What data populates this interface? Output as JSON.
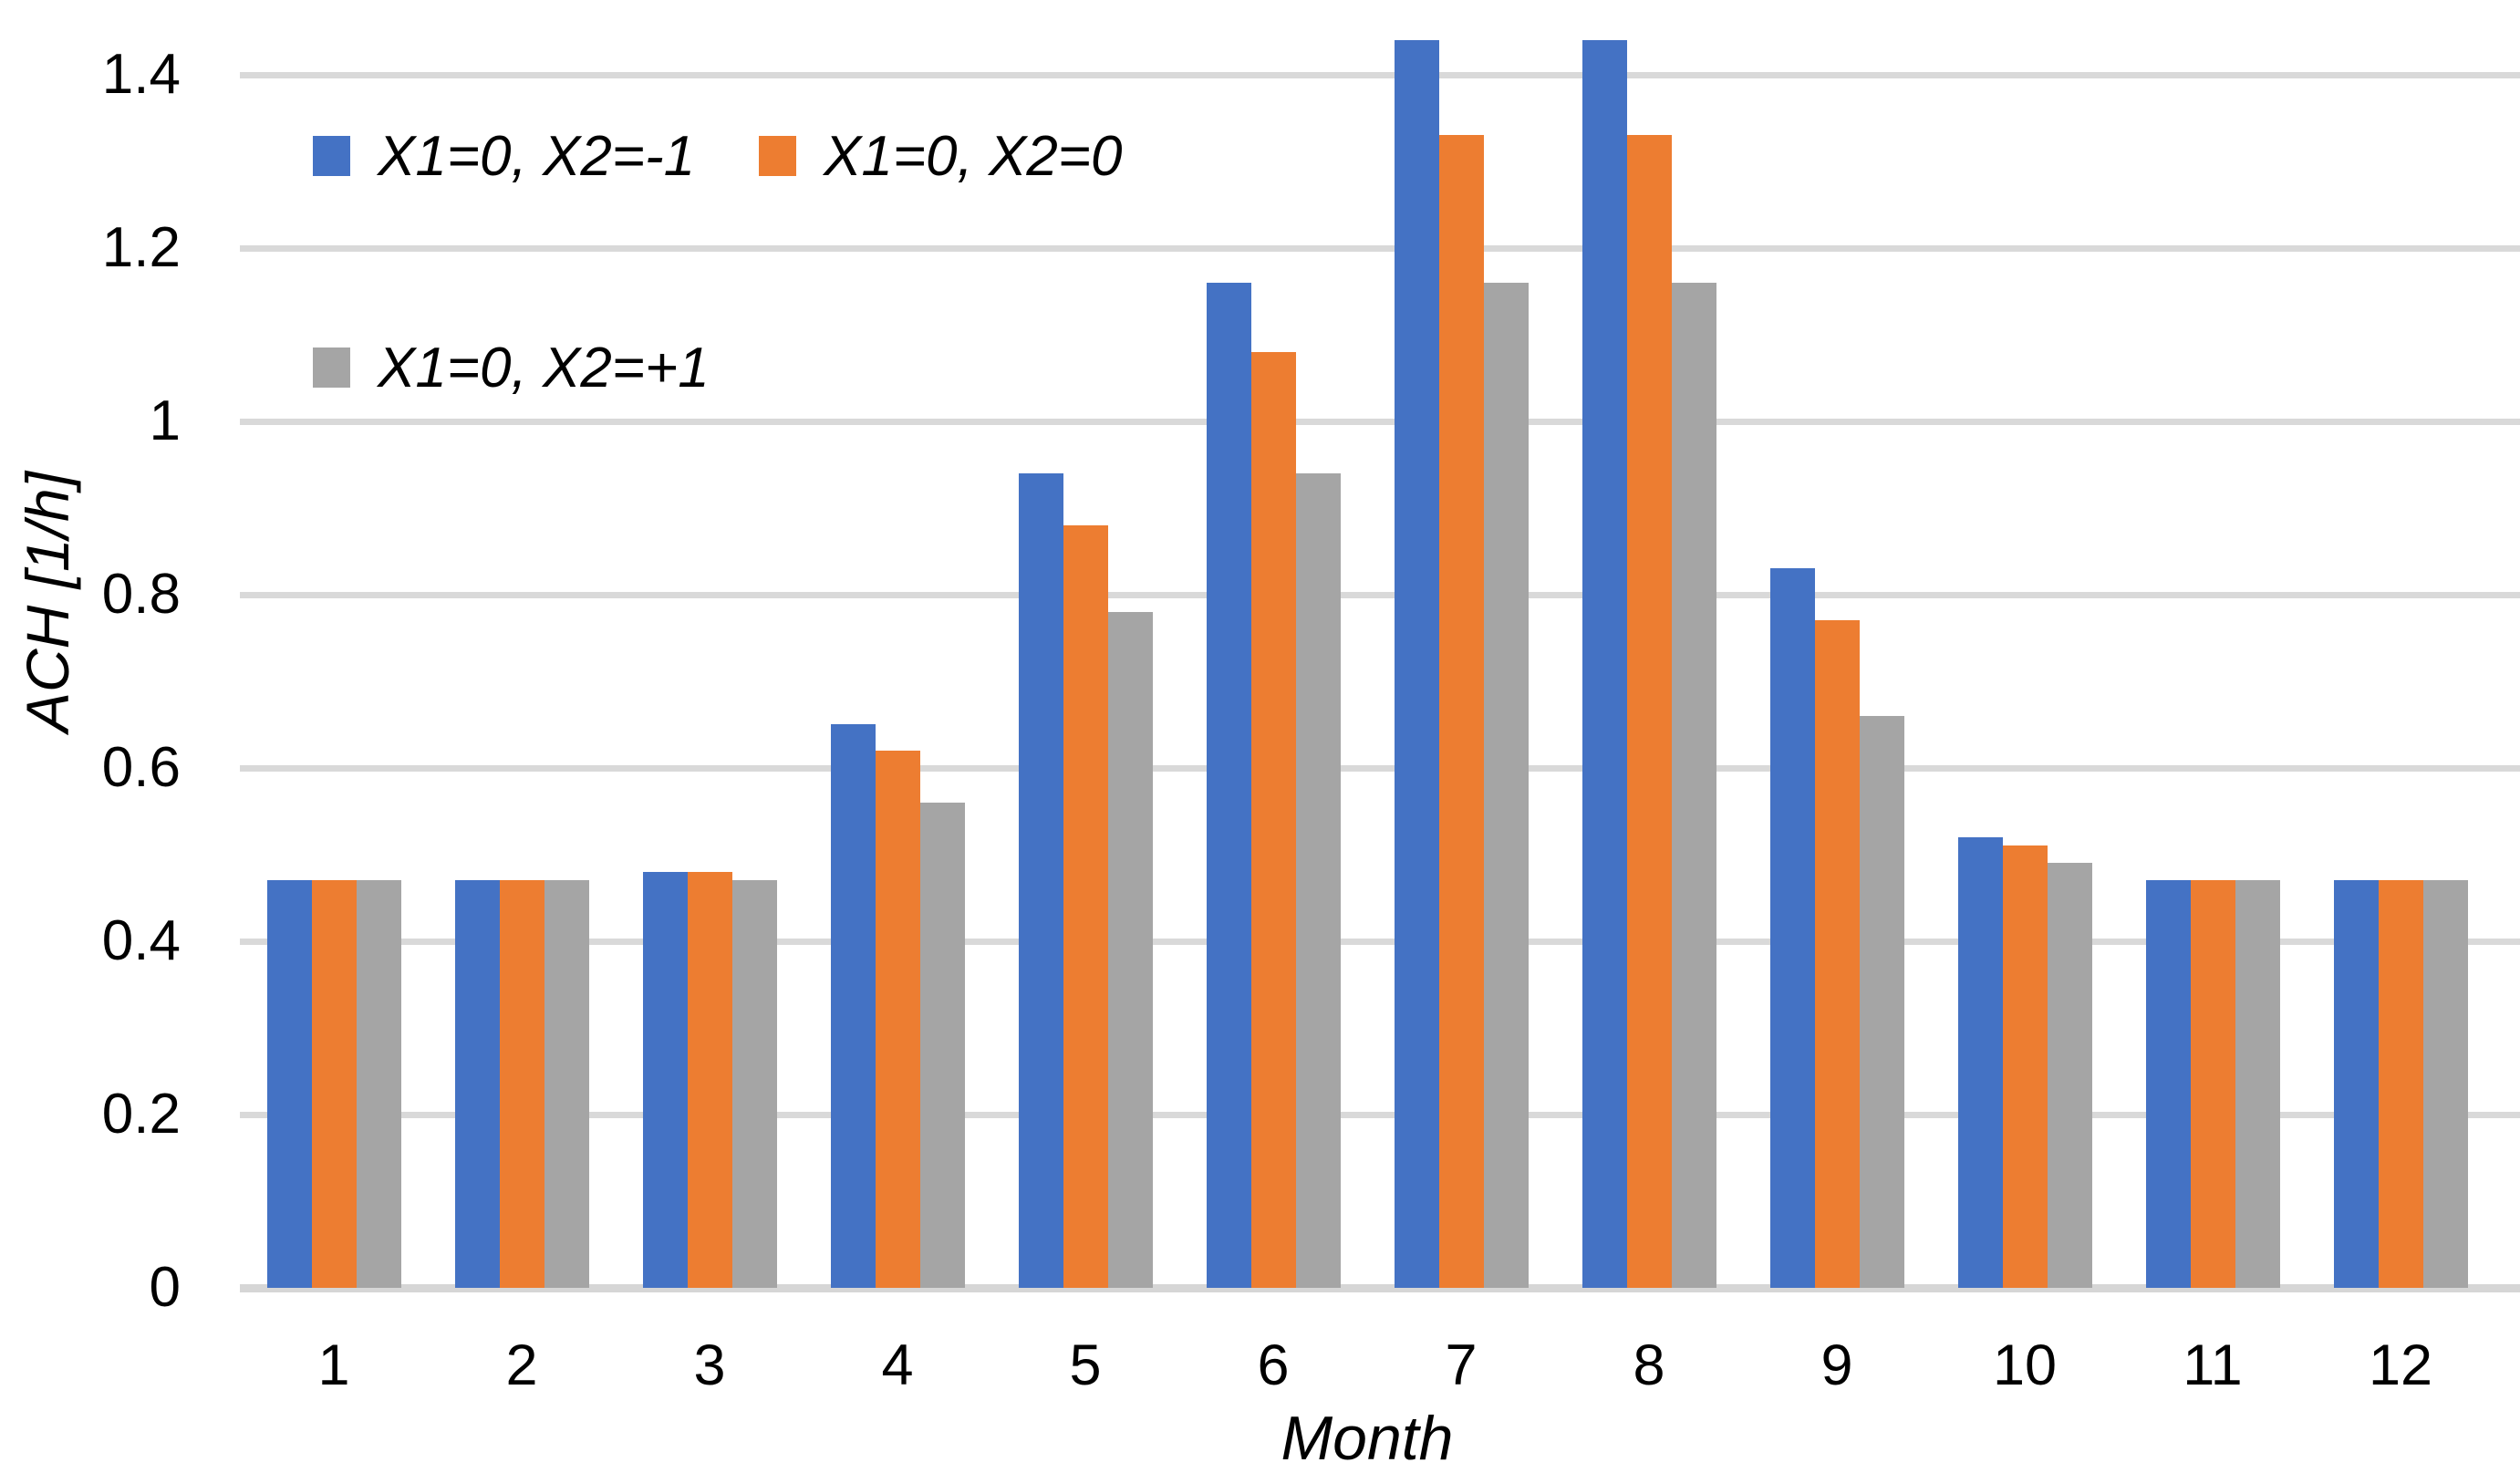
{
  "chart_data": {
    "type": "bar",
    "title": "",
    "categories": [
      "1",
      "2",
      "3",
      "4",
      "5",
      "6",
      "7",
      "8",
      "9",
      "10",
      "11",
      "12"
    ],
    "series": [
      {
        "name": "X1=0, X2=-1",
        "color": "#4472C4",
        "values": [
          0.47,
          0.47,
          0.48,
          0.65,
          0.94,
          1.16,
          1.44,
          1.44,
          0.83,
          0.52,
          0.47,
          0.47
        ]
      },
      {
        "name": "X1=0, X2=0",
        "color": "#ED7D31",
        "values": [
          0.47,
          0.47,
          0.48,
          0.62,
          0.88,
          1.08,
          1.33,
          1.33,
          0.77,
          0.51,
          0.47,
          0.47
        ]
      },
      {
        "name": "X1=0, X2=+1",
        "color": "#A5A5A5",
        "values": [
          0.47,
          0.47,
          0.47,
          0.56,
          0.78,
          0.94,
          1.16,
          1.16,
          0.66,
          0.49,
          0.47,
          0.47
        ]
      }
    ],
    "xlabel": "Month",
    "ylabel": "ACH [1/h]",
    "ylim": [
      0,
      1.45
    ],
    "yticks": [
      {
        "value": 0,
        "label": "0"
      },
      {
        "value": 0.2,
        "label": "0.2"
      },
      {
        "value": 0.4,
        "label": "0.4"
      },
      {
        "value": 0.6,
        "label": "0.6"
      },
      {
        "value": 0.8,
        "label": "0.8"
      },
      {
        "value": 1,
        "label": "1"
      },
      {
        "value": 1.2,
        "label": "1.2"
      },
      {
        "value": 1.4,
        "label": "1.4"
      }
    ],
    "grid": "horizontal",
    "legend_position": "inside-top-left",
    "gridline_color": "#D9D9D9"
  }
}
